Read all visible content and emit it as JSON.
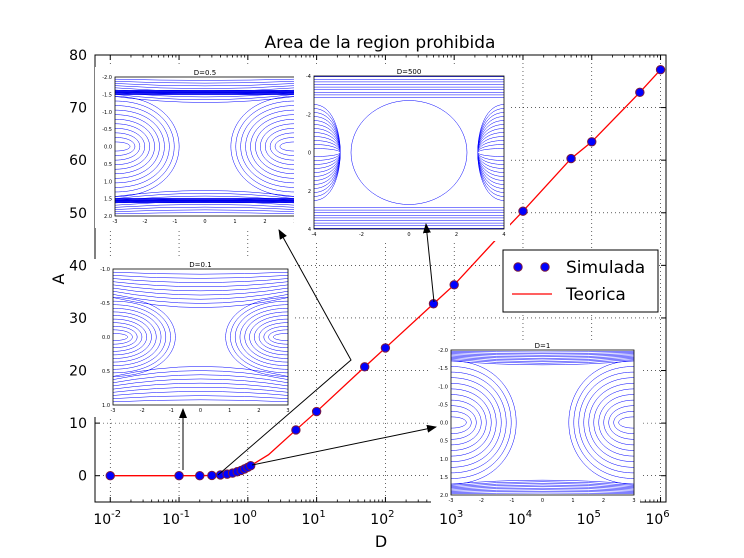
{
  "chart_data": {
    "type": "scatter",
    "title": "Area de la region prohibida",
    "xlabel": "D",
    "ylabel": "A",
    "xscale": "log",
    "xlim": [
      0.006,
      1200000
    ],
    "ylim": [
      -5,
      80
    ],
    "grid": true,
    "legend_position": "center-right",
    "x_ticks": [
      {
        "base": "10",
        "exp": "-2"
      },
      {
        "base": "10",
        "exp": "-1"
      },
      {
        "base": "10",
        "exp": "0"
      },
      {
        "base": "10",
        "exp": "1"
      },
      {
        "base": "10",
        "exp": "2"
      },
      {
        "base": "10",
        "exp": "3"
      },
      {
        "base": "10",
        "exp": "4"
      },
      {
        "base": "10",
        "exp": "5"
      },
      {
        "base": "10",
        "exp": "6"
      }
    ],
    "y_ticks": [
      "0",
      "10",
      "20",
      "30",
      "40",
      "50",
      "60",
      "70",
      "80"
    ],
    "series": [
      {
        "name": "Simulada",
        "style": "points",
        "color": "#0000ff",
        "edge_color": "#7a1a40",
        "x": [
          0.01,
          0.1,
          0.2,
          0.3,
          0.4,
          0.5,
          0.6,
          0.7,
          0.8,
          0.9,
          1.0,
          1.1,
          5,
          10,
          50,
          100,
          500,
          1000,
          5000,
          10000,
          50000,
          100000,
          500000,
          1000000
        ],
        "y": [
          0,
          0,
          0,
          0.05,
          0.15,
          0.3,
          0.5,
          0.75,
          1.0,
          1.3,
          1.6,
          1.9,
          8.7,
          12.2,
          20.7,
          24.3,
          32.7,
          36.3,
          46.2,
          50.3,
          60.3,
          63.5,
          72.9,
          77.2
        ]
      },
      {
        "name": "Teorica",
        "style": "line",
        "color": "#ff0000",
        "x": [
          0.01,
          0.05,
          0.1,
          0.2,
          0.3,
          0.4,
          0.5,
          0.6,
          0.7,
          0.8,
          0.9,
          1.0,
          1.1,
          2,
          5,
          10,
          50,
          100,
          500,
          1000,
          5000,
          10000,
          50000,
          100000,
          500000,
          1000000
        ],
        "y": [
          0,
          0,
          0,
          0,
          0.05,
          0.15,
          0.3,
          0.5,
          0.75,
          1.0,
          1.3,
          1.6,
          1.9,
          4.0,
          8.7,
          12.2,
          20.7,
          24.3,
          32.7,
          36.3,
          46.2,
          50.3,
          60.3,
          63.5,
          72.9,
          77.2
        ]
      }
    ],
    "insets": [
      {
        "label": "D=0.5",
        "yticks": [
          "-2.0",
          "-1.5",
          "-1.0",
          "-0.5",
          "0.0",
          "0.5",
          "1.0",
          "1.5",
          "2.0"
        ],
        "xticks": [
          "-3",
          "-2",
          "-1",
          "0",
          "1",
          "2",
          "3"
        ]
      },
      {
        "label": "D=500",
        "yticks": [
          "-4",
          "-2",
          "0",
          "2",
          "4"
        ],
        "xticks": [
          "-4",
          "-2",
          "0",
          "2",
          "4"
        ]
      },
      {
        "label": "D=0.1",
        "yticks": [
          "-1.0",
          "-0.5",
          "0.0",
          "0.5",
          "1.0"
        ],
        "xticks": [
          "-3",
          "-2",
          "-1",
          "0",
          "1",
          "2",
          "3"
        ]
      },
      {
        "label": "D=1",
        "yticks": [
          "-2.0",
          "-1.5",
          "-1.0",
          "-0.5",
          "0.0",
          "0.5",
          "1.0",
          "1.5",
          "2.0"
        ],
        "xticks": [
          "-3",
          "-2",
          "-1",
          "0",
          "1",
          "2",
          "3"
        ]
      }
    ]
  }
}
